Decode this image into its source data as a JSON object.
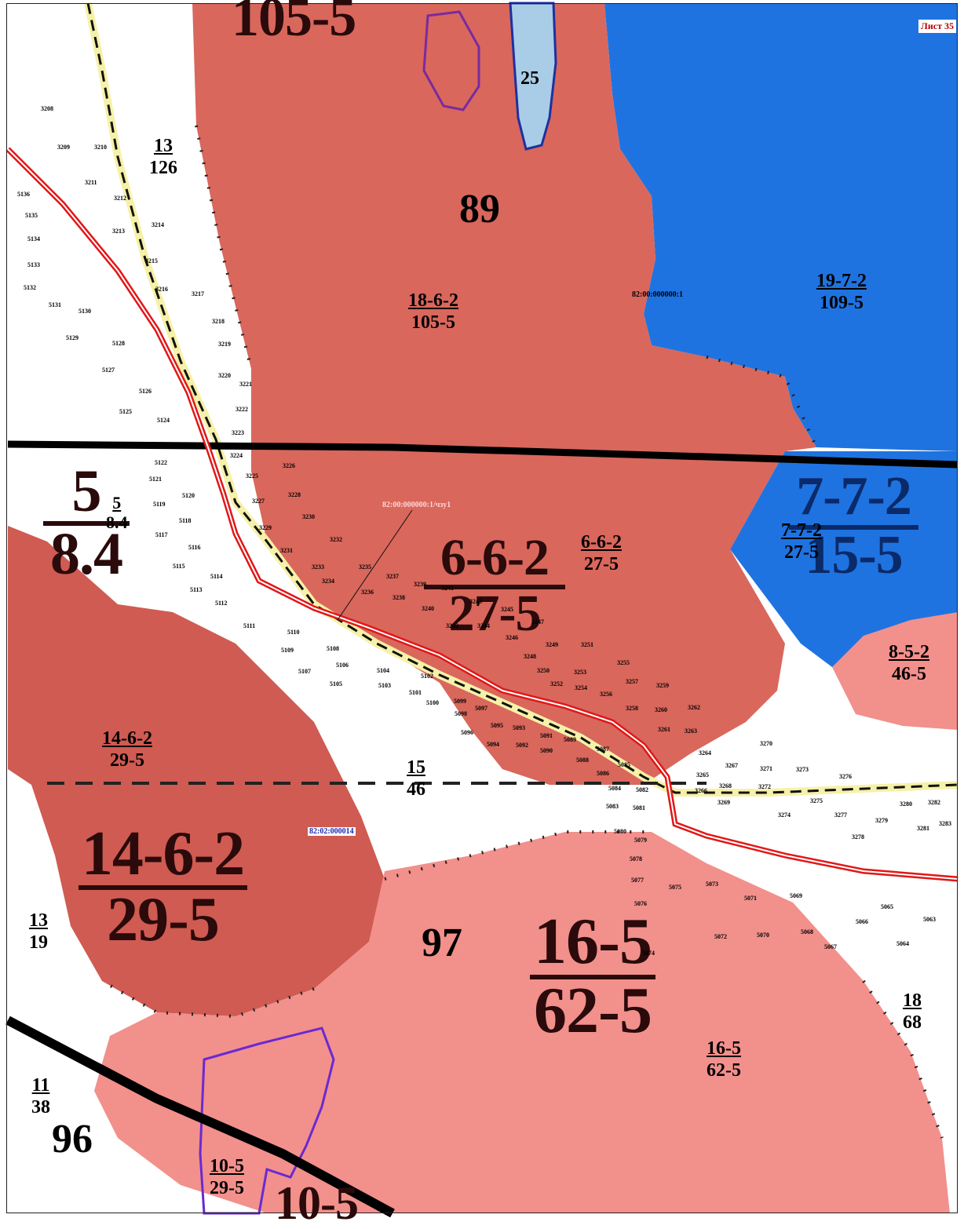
{
  "sheet_label": "Лист 35",
  "cadastral": {
    "parcel_a": "82:00:000000:1",
    "parcel_b": "82:00:000000:1/чзу1",
    "block": "82:02:000014"
  },
  "colors": {
    "forest_red": "#d9675c",
    "forest_red_dark": "#cf5b52",
    "forest_pink": "#f2908c",
    "water_blue": "#1f73e0",
    "lake_light": "#a9cde6",
    "pipeline_red": "#e01818",
    "road_yellow": "#f6f1a8"
  },
  "big_numbers": {
    "n89": "89",
    "n97": "97",
    "n96": "96",
    "n25": "25"
  },
  "large_fractions": {
    "f_5": {
      "num": "5",
      "den": "8.4"
    },
    "f_6_6_2": {
      "num": "6-6-2",
      "den": "27-5"
    },
    "f_14_6_2": {
      "num": "14-6-2",
      "den": "29-5"
    },
    "f_16_5": {
      "num": "16-5",
      "den": "62-5"
    },
    "f_7_7_2": {
      "num": "7-7-2",
      "den": "15-5"
    },
    "top_big": "105-5",
    "bottom_big": "10-5"
  },
  "fractions": {
    "f13_126": {
      "num": "13",
      "den": "126"
    },
    "f18_105": {
      "num": "18-6-2",
      "den": "105-5"
    },
    "f19_109": {
      "num": "19-7-2",
      "den": "109-5"
    },
    "f5_84": {
      "num": "5",
      "den": "8.4"
    },
    "f662_275": {
      "num": "6-6-2",
      "den": "27-5"
    },
    "f772_275": {
      "num": "7-7-2",
      "den": "27-5"
    },
    "f852_465": {
      "num": "8-5-2",
      "den": "46-5"
    },
    "f1462_295": {
      "num": "14-6-2",
      "den": "29-5"
    },
    "f15_46": {
      "num": "15",
      "den": "46"
    },
    "f13_19": {
      "num": "13",
      "den": "19"
    },
    "f18_68": {
      "num": "18",
      "den": "68"
    },
    "f165_625": {
      "num": "16-5",
      "den": "62-5"
    },
    "f11_38": {
      "num": "11",
      "den": "38"
    },
    "f105_295": {
      "num": "10-5",
      "den": "29-5"
    }
  },
  "points": [
    "3208",
    "3209",
    "3210",
    "3211",
    "3212",
    "3213",
    "3214",
    "3215",
    "3216",
    "3217",
    "3218",
    "3219",
    "3220",
    "3221",
    "3222",
    "3223",
    "3224",
    "3225",
    "3226",
    "3227",
    "3228",
    "3229",
    "3230",
    "3231",
    "3232",
    "3233",
    "3234",
    "3235",
    "3236",
    "3237",
    "3238",
    "3239",
    "3240",
    "3241",
    "3242",
    "3243",
    "3244",
    "3245",
    "3246",
    "3247",
    "3248",
    "3249",
    "3250",
    "3251",
    "3252",
    "3253",
    "3254",
    "3255",
    "3256",
    "3257",
    "3258",
    "3259",
    "3260",
    "3261",
    "3262",
    "3263",
    "3264",
    "3265",
    "3266",
    "3267",
    "3268",
    "3269",
    "3270",
    "3271",
    "3272",
    "3273",
    "3274",
    "3275",
    "3276",
    "3277",
    "3278",
    "3279",
    "3280",
    "3281",
    "3282",
    "3283",
    "5136",
    "5135",
    "5134",
    "5133",
    "5132",
    "5131",
    "5130",
    "5129",
    "5128",
    "5127",
    "5126",
    "5125",
    "5124",
    "5123",
    "5122",
    "5121",
    "5120",
    "5119",
    "5118",
    "5117",
    "5116",
    "5115",
    "5114",
    "5113",
    "5112",
    "5111",
    "5110",
    "5109",
    "5108",
    "5107",
    "5106",
    "5105",
    "5104",
    "5103",
    "5102",
    "5101",
    "5100",
    "5099",
    "5098",
    "5097",
    "5096",
    "5095",
    "5094",
    "5093",
    "5092",
    "5091",
    "5090",
    "5089",
    "5088",
    "5087",
    "5086",
    "5085",
    "5084",
    "5083",
    "5082",
    "5081",
    "5080",
    "5079",
    "5078",
    "5077",
    "5076",
    "5075",
    "5074",
    "5073",
    "5072",
    "5071",
    "5070",
    "5069",
    "5068",
    "5067",
    "5066",
    "5065",
    "5064",
    "5063"
  ]
}
